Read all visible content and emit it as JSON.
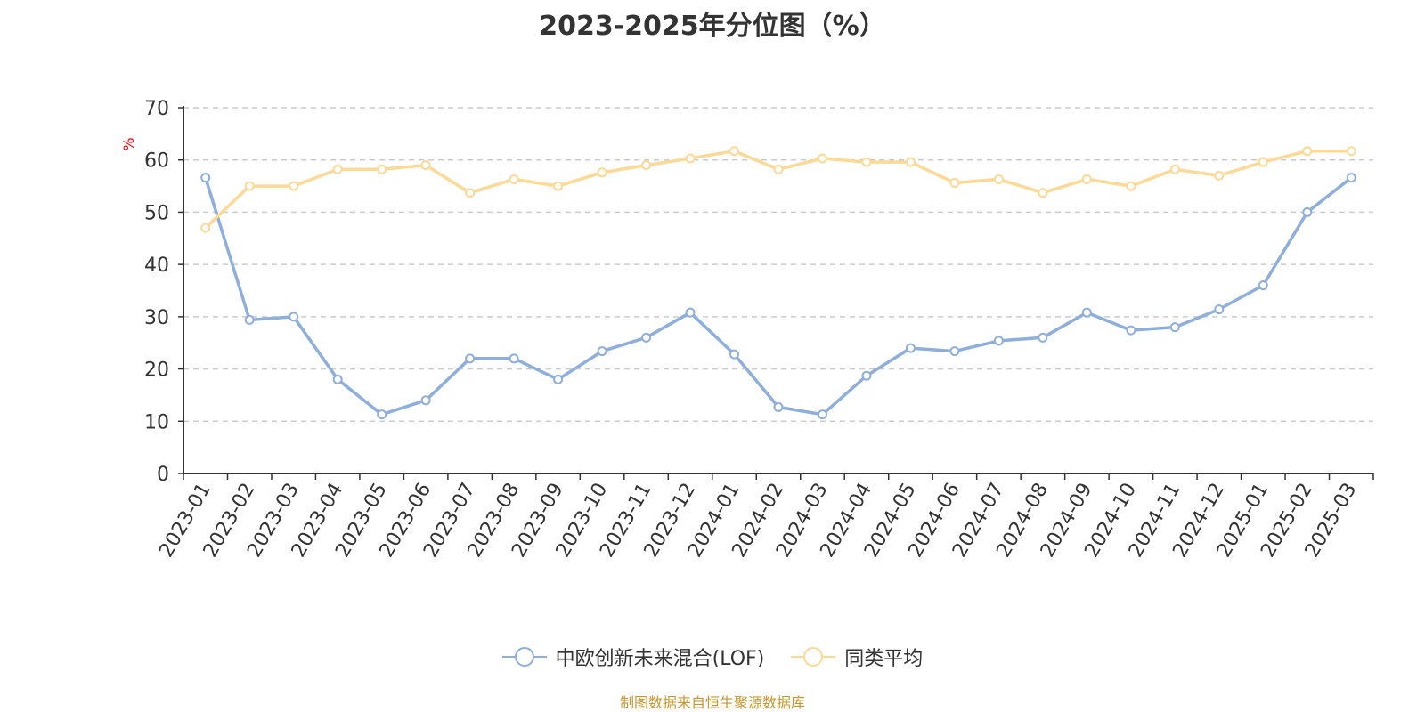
{
  "chart_data": {
    "type": "line",
    "title": "2023-2025年分位图（%）",
    "ylabel": "%",
    "ylim": [
      0,
      70
    ],
    "yticks": [
      0,
      10,
      20,
      30,
      40,
      50,
      60,
      70
    ],
    "grid": true,
    "legend_position": "bottom",
    "categories": [
      "2023-01",
      "2023-02",
      "2023-03",
      "2023-04",
      "2023-05",
      "2023-06",
      "2023-07",
      "2023-08",
      "2023-09",
      "2023-10",
      "2023-11",
      "2023-12",
      "2024-01",
      "2024-02",
      "2024-03",
      "2024-04",
      "2024-05",
      "2024-06",
      "2024-07",
      "2024-08",
      "2024-09",
      "2024-10",
      "2024-11",
      "2024-12",
      "2025-01",
      "2025-02",
      "2025-03"
    ],
    "series": [
      {
        "name": "中欧创新未来混合(LOF)",
        "color": "#8eaedb",
        "values": [
          56.6,
          29.4,
          30.0,
          18.0,
          11.3,
          14.0,
          22.0,
          22.0,
          18.0,
          23.4,
          26.0,
          30.8,
          22.8,
          12.7,
          11.3,
          18.7,
          24.0,
          23.4,
          25.4,
          26.0,
          30.8,
          27.4,
          28.0,
          31.4,
          36.0,
          50.0,
          56.6
        ]
      },
      {
        "name": "同类平均",
        "color": "#fcd996",
        "values": [
          47.0,
          55.0,
          55.0,
          58.2,
          58.2,
          59.0,
          53.7,
          56.3,
          55.0,
          57.6,
          59.0,
          60.3,
          61.7,
          58.2,
          60.3,
          59.6,
          59.6,
          55.6,
          56.3,
          53.7,
          56.3,
          55.0,
          58.2,
          57.0,
          59.6,
          61.7,
          61.7
        ]
      }
    ]
  },
  "source_note": "制图数据来自恒生聚源数据库",
  "colors": {
    "axis": "#333333",
    "grid": "#cccccc",
    "ylabel": "#ff0000",
    "source_note": "#c8962e"
  }
}
